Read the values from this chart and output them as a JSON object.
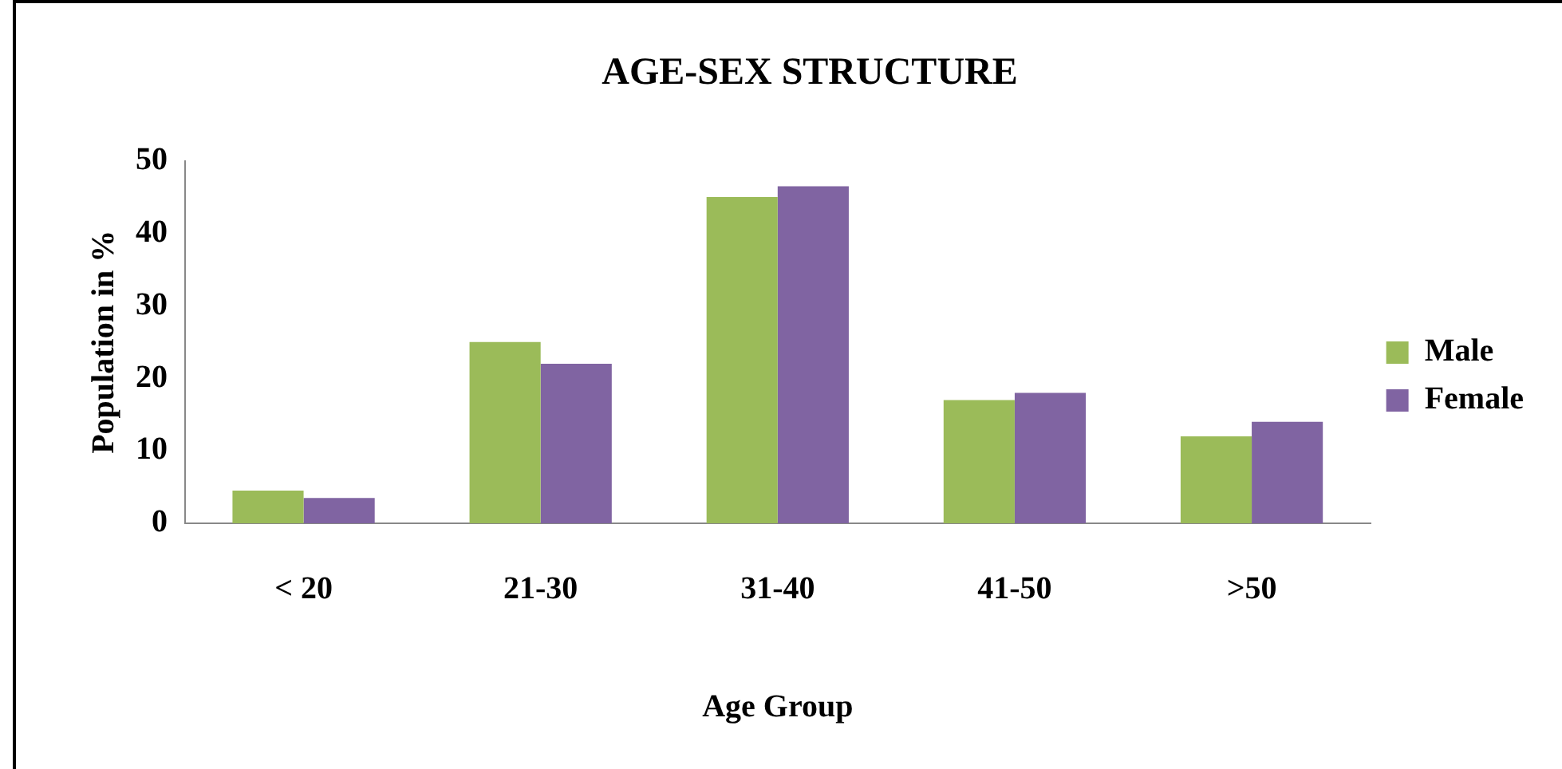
{
  "chart_data": {
    "type": "bar",
    "title": "AGE-SEX STRUCTURE",
    "xlabel": "Age Group",
    "ylabel": "Population in %",
    "categories": [
      "< 20",
      "21-30",
      "31-40",
      "41-50",
      ">50"
    ],
    "series": [
      {
        "name": "Male",
        "color": "#9bbb59",
        "values": [
          4.5,
          25,
          45,
          17,
          12
        ]
      },
      {
        "name": "Female",
        "color": "#8064a2",
        "values": [
          3.5,
          22,
          46.5,
          18,
          14
        ]
      }
    ],
    "ylim": [
      0,
      50
    ],
    "yticks": [
      0,
      10,
      20,
      30,
      40,
      50
    ],
    "grid": false,
    "legend": "right"
  }
}
